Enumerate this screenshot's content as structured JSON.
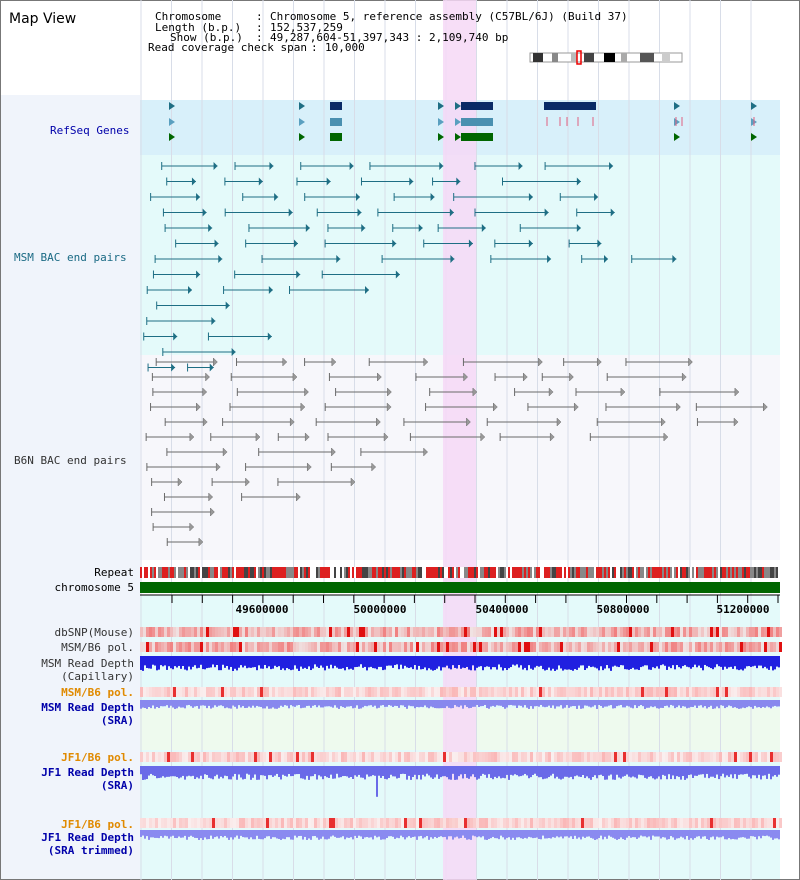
{
  "title": "Map View",
  "header": {
    "chromosome_label": "Chromosome",
    "chromosome_value": "Chromosome 5, reference assembly (C57BL/6J) (Build 37)",
    "length_label": "Length (b.p.)",
    "length_value": "152,537,259",
    "show_label": "Show (b.p.)",
    "show_value": "49,287,604-51,397,343 : 2,109,740 bp",
    "coverage_label": "Read coverage check span",
    "coverage_value": "10,000"
  },
  "tracks": {
    "refseq": "RefSeq Genes",
    "msm_bac": "MSM BAC end pairs",
    "b6n_bac": "B6N BAC end pairs",
    "repeat": "Repeat",
    "chromosome": "chromosome 5",
    "dbsnp": "dbSNP(Mouse)",
    "msm_b6_pol_1": "MSM/B6 pol.",
    "msm_read_depth_cap_1": "MSM Read Depth",
    "msm_read_depth_cap_2": "(Capillary)",
    "msm_b6_pol_2": "MSM/B6 pol.",
    "msm_read_depth_sra_1": "MSM Read Depth",
    "msm_read_depth_sra_2": "(SRA)",
    "jf1_b6_pol_1": "JF1/B6 pol.",
    "jf1_read_depth_1": "JF1 Read Depth",
    "jf1_read_depth_2": "(SRA)",
    "jf1_b6_pol_2": "JF1/B6 pol.",
    "jf1_read_depth_trim_1": "JF1 Read Depth",
    "jf1_read_depth_trim_2": "(SRA trimmed)"
  },
  "axis": {
    "ticks": [
      "49600000",
      "50000000",
      "50400000",
      "50800000",
      "51200000"
    ]
  },
  "colors": {
    "refseq_bg": "#d8f0fa",
    "lower_bg": "#e4fafa",
    "highlight": "#f6d8f6",
    "msm_blue": "#1e6e84",
    "gene_dark": "#0a2a66",
    "gene_green": "#006600",
    "b6n_gray": "#6a6a6a",
    "track_label_blue": "#0000aa",
    "track_label_orange": "#e08a00",
    "msm_label_teal": "#1a6a84"
  }
}
